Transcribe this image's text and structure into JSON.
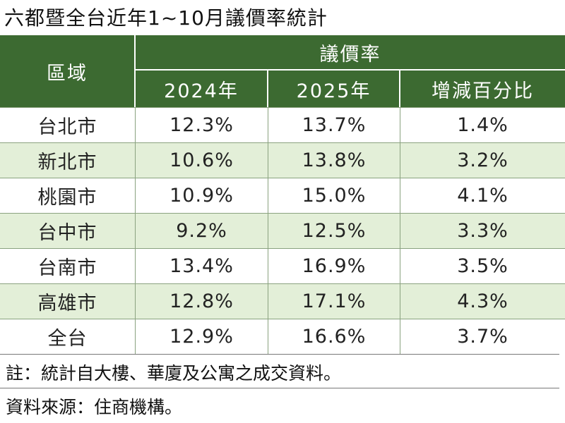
{
  "title": "六都暨全台近年1~10月議價率統計",
  "table": {
    "header": {
      "region": "區域",
      "group": "議價率",
      "columns": [
        "2024年",
        "2025年",
        "增減百分比"
      ]
    },
    "rows": [
      [
        "台北市",
        "12.3%",
        "13.7%",
        "1.4%"
      ],
      [
        "新北市",
        "10.6%",
        "13.8%",
        "3.2%"
      ],
      [
        "桃園市",
        "10.9%",
        "15.0%",
        "4.1%"
      ],
      [
        "台中市",
        "9.2%",
        "12.5%",
        "3.3%"
      ],
      [
        "台南市",
        "13.4%",
        "16.9%",
        "3.5%"
      ],
      [
        "高雄市",
        "12.8%",
        "17.1%",
        "4.3%"
      ],
      [
        "全台",
        "12.9%",
        "16.6%",
        "3.7%"
      ]
    ]
  },
  "notes": [
    "註：統計自大樓、華廈及公寓之成交資料。",
    "資料來源：住商機構。"
  ]
}
